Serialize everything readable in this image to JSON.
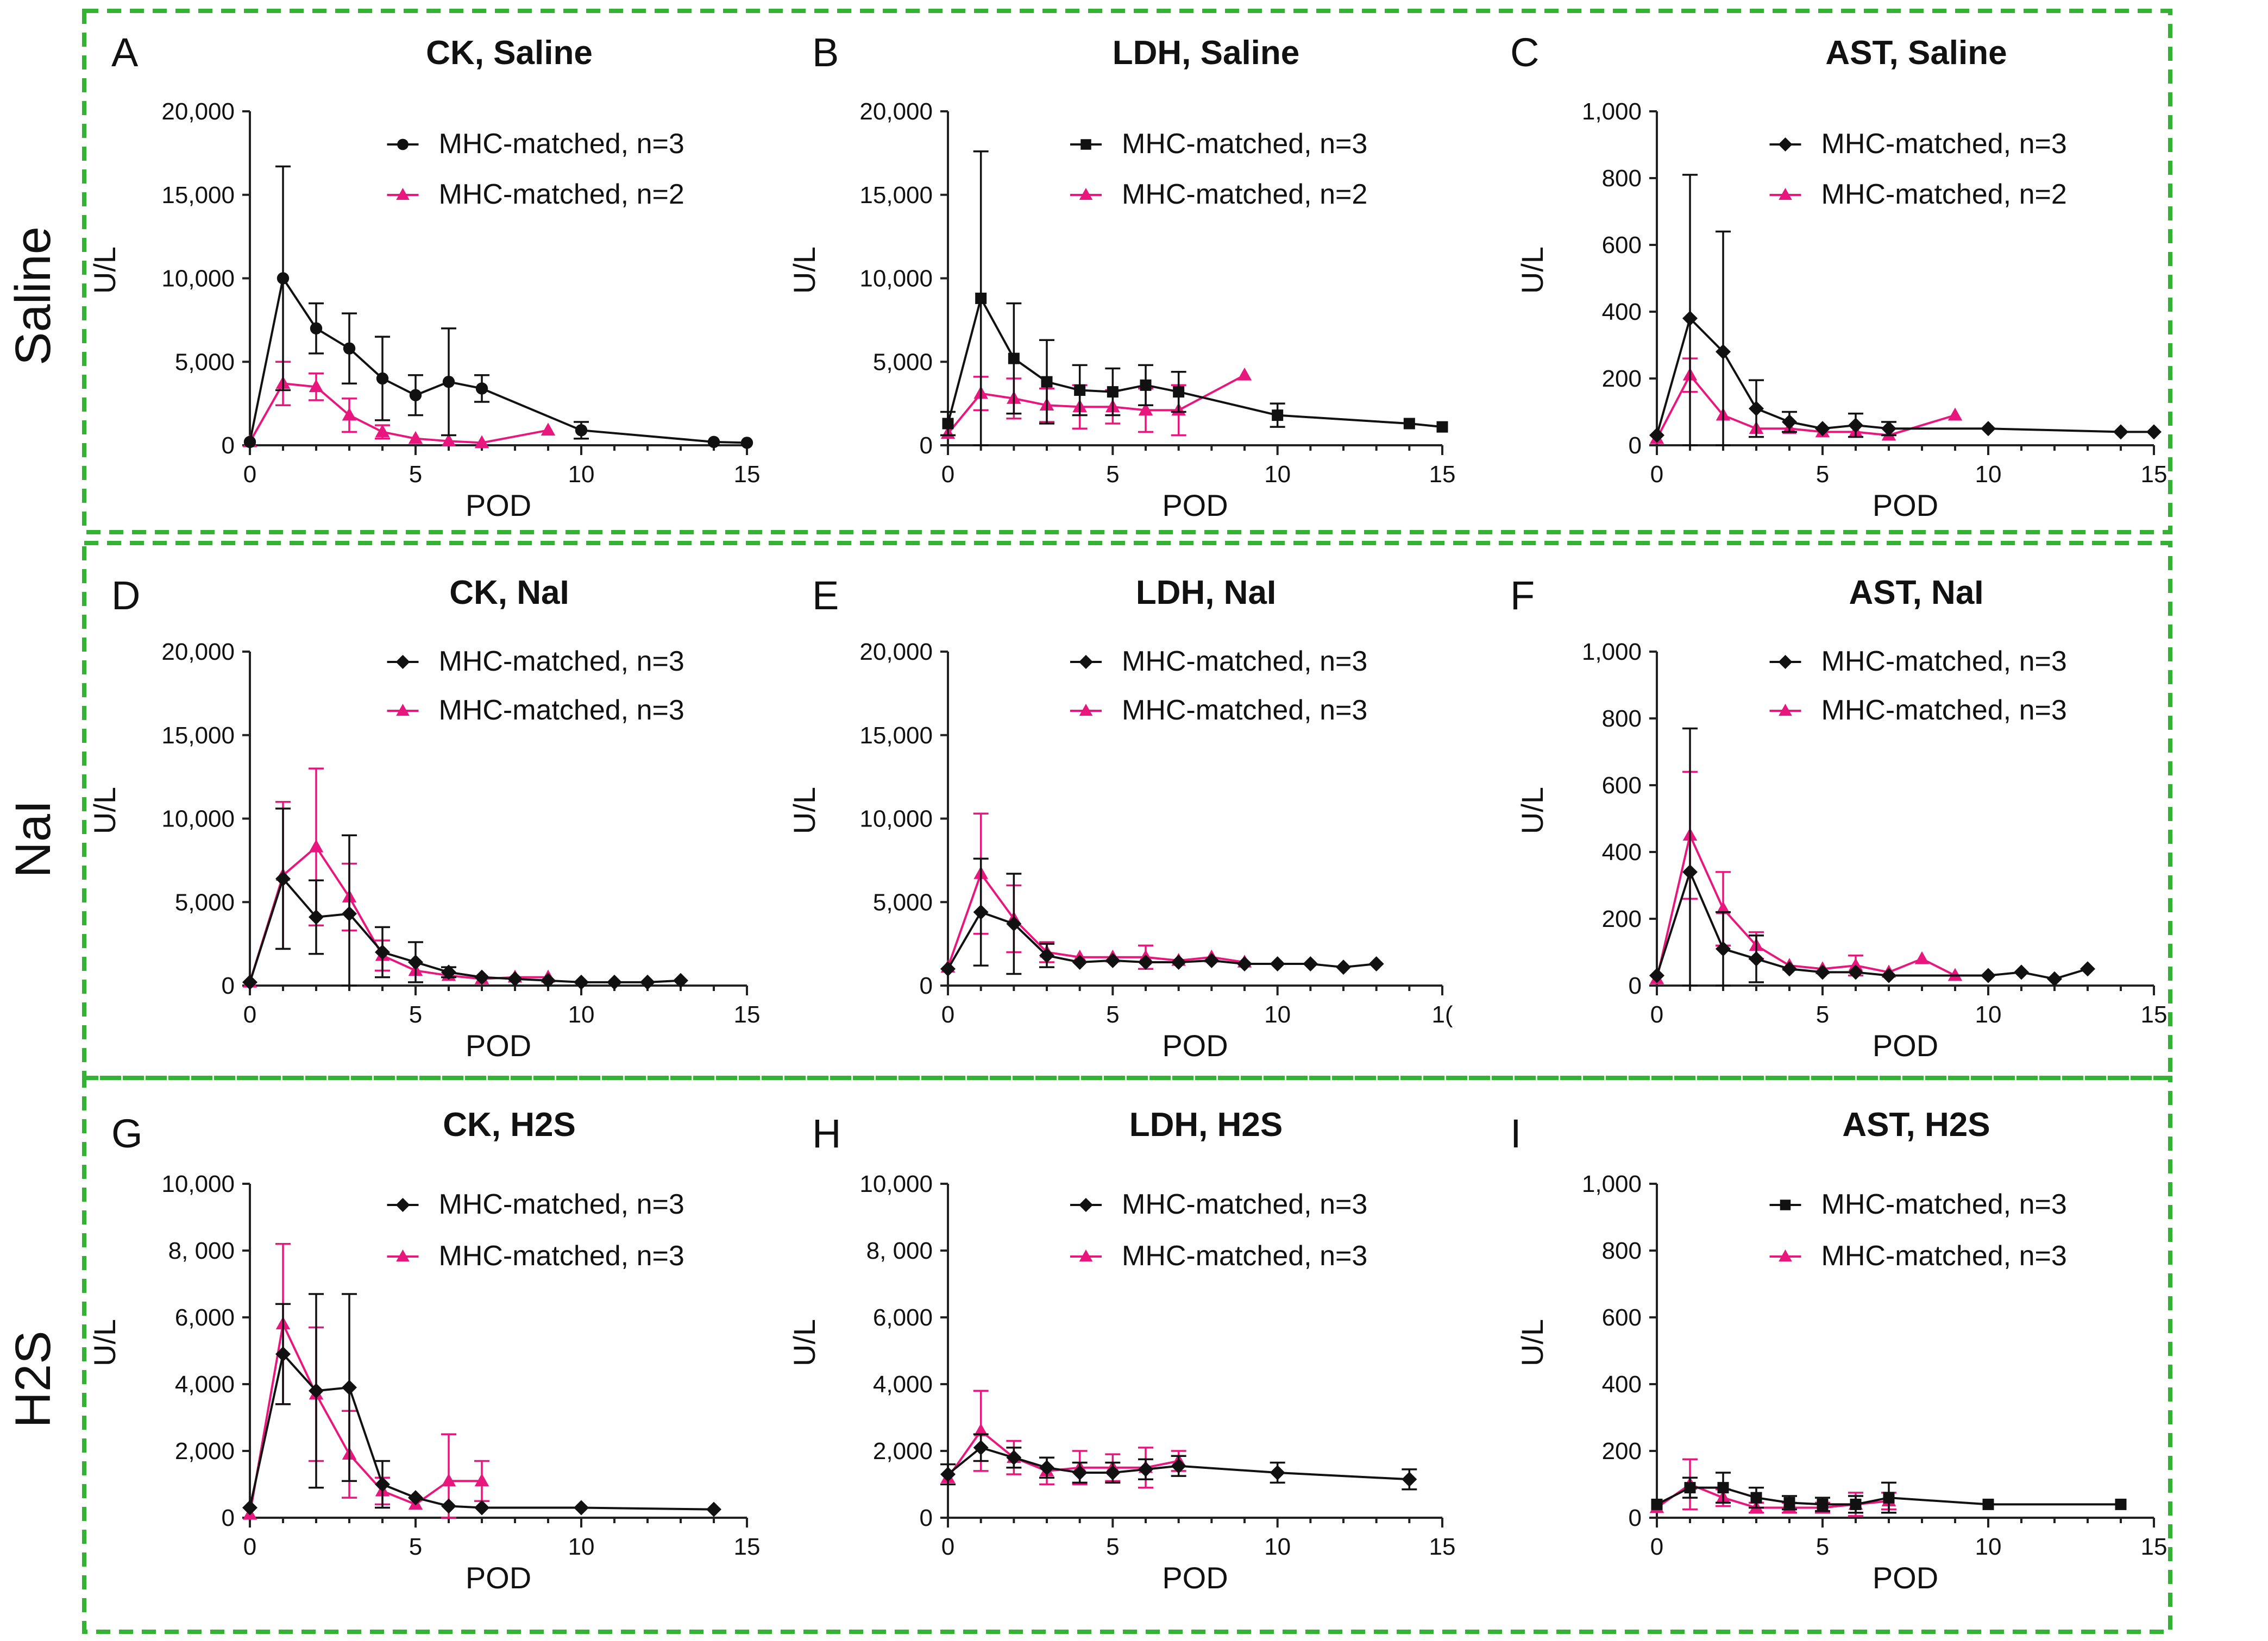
{
  "colors": {
    "series1": "#111111",
    "series2": "#e8177d",
    "frame": "#34b233"
  },
  "rows": [
    {
      "label": "Saline"
    },
    {
      "label": "NaI"
    },
    {
      "label": "H2S"
    }
  ],
  "chart_data": [
    {
      "panel": "A",
      "type": "line",
      "title": "CK, Saline",
      "xlabel": "POD",
      "ylabel": "U/L",
      "xlim": [
        0,
        15
      ],
      "ylim": [
        0,
        20000
      ],
      "xticks": [
        "0",
        "5",
        "10",
        "15"
      ],
      "yticks": [
        {
          "v": 0,
          "label": "0"
        },
        {
          "v": 5000,
          "label": "5,000"
        },
        {
          "v": 10000,
          "label": "10,000"
        },
        {
          "v": 15000,
          "label": "15,000"
        },
        {
          "v": 20000,
          "label": "20,000"
        }
      ],
      "legend": "top-right",
      "series": [
        {
          "name": "MHC-matched, n=3",
          "marker": "circle",
          "x": [
            0,
            1,
            2,
            3,
            4,
            5,
            6,
            7,
            10,
            14,
            15
          ],
          "y": [
            200,
            10000,
            7000,
            5800,
            4000,
            3000,
            3800,
            3400,
            900,
            200,
            150
          ],
          "err": [
            0,
            6700,
            1500,
            2100,
            2500,
            1200,
            3200,
            800,
            500,
            0,
            0
          ]
        },
        {
          "name": "MHC-matched, n=2",
          "marker": "triangle",
          "x": [
            0,
            1,
            2,
            3,
            4,
            5,
            6,
            7,
            9
          ],
          "y": [
            200,
            3700,
            3500,
            1800,
            800,
            400,
            250,
            150,
            900
          ],
          "err": [
            0,
            1300,
            800,
            1000,
            400,
            0,
            0,
            0,
            0
          ]
        }
      ]
    },
    {
      "panel": "B",
      "type": "line",
      "title": "LDH, Saline",
      "xlabel": "POD",
      "ylabel": "U/L",
      "xlim": [
        0,
        15
      ],
      "ylim": [
        0,
        20000
      ],
      "xticks": [
        "0",
        "5",
        "10",
        "15"
      ],
      "yticks": [
        {
          "v": 0,
          "label": "0"
        },
        {
          "v": 5000,
          "label": "5,000"
        },
        {
          "v": 10000,
          "label": "10,000"
        },
        {
          "v": 15000,
          "label": "15,000"
        },
        {
          "v": 20000,
          "label": "20,000"
        }
      ],
      "legend": "top-right",
      "series": [
        {
          "name": "MHC-matched, n=3",
          "marker": "square",
          "x": [
            0,
            1,
            2,
            3,
            4,
            5,
            6,
            7,
            10,
            14,
            15
          ],
          "y": [
            1300,
            8800,
            5200,
            3800,
            3300,
            3200,
            3600,
            3200,
            1800,
            1300,
            1100
          ],
          "err": [
            700,
            8800,
            3300,
            2500,
            1500,
            1400,
            1200,
            1200,
            700,
            0,
            0
          ]
        },
        {
          "name": "MHC-matched, n=2",
          "marker": "triangle",
          "x": [
            0,
            1,
            2,
            3,
            4,
            5,
            6,
            7,
            9
          ],
          "y": [
            700,
            3100,
            2800,
            2400,
            2300,
            2300,
            2100,
            2100,
            4200
          ],
          "err": [
            0,
            1000,
            1200,
            1000,
            1300,
            1000,
            1300,
            1500,
            0
          ]
        }
      ]
    },
    {
      "panel": "C",
      "type": "line",
      "title": "AST, Saline",
      "xlabel": "POD",
      "ylabel": "U/L",
      "xlim": [
        0,
        15
      ],
      "ylim": [
        0,
        1000
      ],
      "xticks": [
        "0",
        "5",
        "10",
        "15"
      ],
      "yticks": [
        {
          "v": 0,
          "label": "0"
        },
        {
          "v": 200,
          "label": "200"
        },
        {
          "v": 400,
          "label": "400"
        },
        {
          "v": 600,
          "label": "600"
        },
        {
          "v": 800,
          "label": "800"
        },
        {
          "v": 1000,
          "label": "1,000"
        }
      ],
      "legend": "top-right",
      "series": [
        {
          "name": "MHC-matched, n=3",
          "marker": "diamond",
          "x": [
            0,
            1,
            2,
            3,
            4,
            5,
            6,
            7,
            10,
            14,
            15
          ],
          "y": [
            30,
            380,
            280,
            110,
            70,
            50,
            60,
            50,
            50,
            40,
            40
          ],
          "err": [
            0,
            430,
            360,
            85,
            30,
            0,
            35,
            20,
            0,
            0,
            0
          ]
        },
        {
          "name": "MHC-matched, n=2",
          "marker": "triangle",
          "x": [
            0,
            1,
            2,
            3,
            4,
            5,
            6,
            7,
            9
          ],
          "y": [
            20,
            210,
            90,
            50,
            50,
            40,
            40,
            30,
            90
          ],
          "err": [
            0,
            50,
            0,
            0,
            0,
            0,
            0,
            0,
            0
          ]
        }
      ]
    },
    {
      "panel": "D",
      "type": "line",
      "title": "CK, NaI",
      "xlabel": "POD",
      "ylabel": "U/L",
      "xlim": [
        0,
        15
      ],
      "ylim": [
        0,
        20000
      ],
      "xticks": [
        "0",
        "5",
        "10",
        "15"
      ],
      "yticks": [
        {
          "v": 0,
          "label": "0"
        },
        {
          "v": 5000,
          "label": "5,000"
        },
        {
          "v": 10000,
          "label": "10,000"
        },
        {
          "v": 15000,
          "label": "15,000"
        },
        {
          "v": 20000,
          "label": "20,000"
        }
      ],
      "legend": "top-right",
      "series": [
        {
          "name": "MHC-matched, n=3",
          "marker": "diamond",
          "x": [
            0,
            1,
            2,
            3,
            4,
            5,
            6,
            7,
            8,
            9,
            10,
            11,
            12,
            13
          ],
          "y": [
            200,
            6400,
            4100,
            4300,
            2000,
            1400,
            800,
            500,
            400,
            300,
            200,
            200,
            200,
            300
          ],
          "err": [
            0,
            4200,
            2200,
            4700,
            1500,
            1200,
            300,
            0,
            0,
            0,
            0,
            0,
            0,
            0
          ]
        },
        {
          "name": "MHC-matched, n=3",
          "marker": "triangle",
          "x": [
            0,
            1,
            2,
            3,
            4,
            5,
            6,
            7,
            8,
            9
          ],
          "y": [
            200,
            6600,
            8300,
            5300,
            1800,
            900,
            600,
            400,
            500,
            500
          ],
          "err": [
            0,
            4400,
            4700,
            2000,
            900,
            0,
            0,
            0,
            0,
            0
          ]
        }
      ]
    },
    {
      "panel": "E",
      "type": "line",
      "title": "LDH, NaI",
      "xlabel": "POD",
      "ylabel": "U/L",
      "xlim": [
        0,
        15
      ],
      "ylim": [
        0,
        20000
      ],
      "xticks": [
        "0",
        "5",
        "10",
        "1("
      ],
      "yticks": [
        {
          "v": 0,
          "label": "0"
        },
        {
          "v": 5000,
          "label": "5,000"
        },
        {
          "v": 10000,
          "label": "10,000"
        },
        {
          "v": 15000,
          "label": "15,000"
        },
        {
          "v": 20000,
          "label": "20,000"
        }
      ],
      "legend": "top-right",
      "series": [
        {
          "name": "MHC-matched, n=3",
          "marker": "diamond",
          "x": [
            0,
            1,
            2,
            3,
            4,
            5,
            6,
            7,
            8,
            9,
            10,
            11,
            12,
            13
          ],
          "y": [
            1000,
            4400,
            3700,
            1800,
            1400,
            1500,
            1400,
            1400,
            1500,
            1300,
            1300,
            1300,
            1100,
            1300
          ],
          "err": [
            0,
            3200,
            3000,
            700,
            0,
            0,
            0,
            0,
            0,
            0,
            0,
            0,
            0,
            0
          ]
        },
        {
          "name": "MHC-matched, n=3",
          "marker": "triangle",
          "x": [
            0,
            1,
            2,
            3,
            4,
            5,
            6,
            7,
            8,
            9
          ],
          "y": [
            1100,
            6700,
            4000,
            2000,
            1700,
            1700,
            1700,
            1500,
            1700,
            1400
          ],
          "err": [
            0,
            3600,
            2000,
            600,
            0,
            0,
            700,
            0,
            0,
            0
          ]
        }
      ]
    },
    {
      "panel": "F",
      "type": "line",
      "title": "AST, NaI",
      "xlabel": "POD",
      "ylabel": "U/L",
      "xlim": [
        0,
        15
      ],
      "ylim": [
        0,
        1000
      ],
      "xticks": [
        "0",
        "5",
        "10",
        "15"
      ],
      "yticks": [
        {
          "v": 0,
          "label": "0"
        },
        {
          "v": 200,
          "label": "200"
        },
        {
          "v": 400,
          "label": "400"
        },
        {
          "v": 600,
          "label": "600"
        },
        {
          "v": 800,
          "label": "800"
        },
        {
          "v": 1000,
          "label": "1,000"
        }
      ],
      "legend": "top-right",
      "series": [
        {
          "name": "MHC-matched, n=3",
          "marker": "diamond",
          "x": [
            0,
            1,
            2,
            3,
            4,
            5,
            6,
            7,
            10,
            11,
            12,
            13
          ],
          "y": [
            30,
            340,
            110,
            80,
            50,
            40,
            40,
            30,
            30,
            40,
            20,
            50
          ],
          "err": [
            0,
            430,
            110,
            70,
            0,
            0,
            0,
            0,
            0,
            0,
            0,
            0
          ]
        },
        {
          "name": "MHC-matched, n=3",
          "marker": "triangle",
          "x": [
            0,
            1,
            2,
            3,
            4,
            5,
            6,
            7,
            8,
            9
          ],
          "y": [
            20,
            450,
            230,
            120,
            60,
            50,
            60,
            40,
            80,
            30
          ],
          "err": [
            0,
            190,
            110,
            40,
            0,
            0,
            30,
            0,
            0,
            0
          ]
        }
      ]
    },
    {
      "panel": "G",
      "type": "line",
      "title": "CK, H2S",
      "xlabel": "POD",
      "ylabel": "U/L",
      "xlim": [
        0,
        15
      ],
      "ylim": [
        0,
        10000
      ],
      "xticks": [
        "0",
        "5",
        "10",
        "15"
      ],
      "yticks": [
        {
          "v": 0,
          "label": "0"
        },
        {
          "v": 2000,
          "label": "2,000"
        },
        {
          "v": 4000,
          "label": "4,000"
        },
        {
          "v": 6000,
          "label": "6,000"
        },
        {
          "v": 8000,
          "label": "8, 000"
        },
        {
          "v": 10000,
          "label": "10,000"
        }
      ],
      "legend": "top-right",
      "series": [
        {
          "name": "MHC-matched, n=3",
          "marker": "diamond",
          "x": [
            0,
            1,
            2,
            3,
            4,
            5,
            6,
            7,
            10,
            14
          ],
          "y": [
            300,
            4900,
            3800,
            3900,
            1000,
            600,
            350,
            300,
            300,
            250
          ],
          "err": [
            0,
            1500,
            2900,
            2800,
            700,
            0,
            0,
            0,
            0,
            0
          ]
        },
        {
          "name": "MHC-matched, n=3",
          "marker": "triangle",
          "x": [
            0,
            1,
            2,
            3,
            4,
            5,
            6,
            7
          ],
          "y": [
            100,
            5800,
            3700,
            1900,
            800,
            400,
            1100,
            1100
          ],
          "err": [
            0,
            2400,
            2000,
            1300,
            400,
            0,
            1400,
            600
          ]
        }
      ]
    },
    {
      "panel": "H",
      "type": "line",
      "title": "LDH, H2S",
      "xlabel": "POD",
      "ylabel": "U/L",
      "xlim": [
        0,
        15
      ],
      "ylim": [
        0,
        10000
      ],
      "xticks": [
        "0",
        "5",
        "10",
        "15"
      ],
      "yticks": [
        {
          "v": 0,
          "label": "0"
        },
        {
          "v": 2000,
          "label": "2,000"
        },
        {
          "v": 4000,
          "label": "4,000"
        },
        {
          "v": 6000,
          "label": "6,000"
        },
        {
          "v": 8000,
          "label": "8, 000"
        },
        {
          "v": 10000,
          "label": "10,000"
        }
      ],
      "legend": "top-right",
      "series": [
        {
          "name": "MHC-matched, n=3",
          "marker": "diamond",
          "x": [
            0,
            1,
            2,
            3,
            4,
            5,
            6,
            7,
            10,
            14
          ],
          "y": [
            1300,
            2100,
            1800,
            1500,
            1350,
            1350,
            1450,
            1550,
            1350,
            1150
          ],
          "err": [
            300,
            400,
            300,
            300,
            300,
            300,
            300,
            300,
            300,
            300
          ]
        },
        {
          "name": "MHC-matched, n=3",
          "marker": "triangle",
          "x": [
            0,
            1,
            2,
            3,
            4,
            5,
            6,
            7
          ],
          "y": [
            1200,
            2600,
            1800,
            1400,
            1500,
            1500,
            1500,
            1700
          ],
          "err": [
            0,
            1200,
            500,
            400,
            500,
            400,
            600,
            300
          ]
        }
      ]
    },
    {
      "panel": "I",
      "type": "line",
      "title": "AST, H2S",
      "xlabel": "POD",
      "ylabel": "U/L",
      "xlim": [
        0,
        15
      ],
      "ylim": [
        0,
        1000
      ],
      "xticks": [
        "0",
        "5",
        "10",
        "15"
      ],
      "yticks": [
        {
          "v": 0,
          "label": "0"
        },
        {
          "v": 200,
          "label": "200"
        },
        {
          "v": 400,
          "label": "400"
        },
        {
          "v": 600,
          "label": "600"
        },
        {
          "v": 800,
          "label": "800"
        },
        {
          "v": 1000,
          "label": "1,000"
        }
      ],
      "legend": "top-right",
      "series": [
        {
          "name": "MHC-matched, n=3",
          "marker": "square",
          "x": [
            0,
            1,
            2,
            3,
            4,
            5,
            6,
            7,
            10,
            14
          ],
          "y": [
            40,
            90,
            90,
            60,
            45,
            40,
            40,
            60,
            40,
            40
          ],
          "err": [
            0,
            30,
            45,
            30,
            20,
            20,
            25,
            45,
            0,
            0
          ]
        },
        {
          "name": "MHC-matched, n=3",
          "marker": "triangle",
          "x": [
            0,
            1,
            2,
            3,
            4,
            5,
            6,
            7
          ],
          "y": [
            30,
            100,
            60,
            30,
            30,
            30,
            40,
            50
          ],
          "err": [
            0,
            75,
            25,
            15,
            15,
            15,
            35,
            25
          ]
        }
      ]
    }
  ]
}
